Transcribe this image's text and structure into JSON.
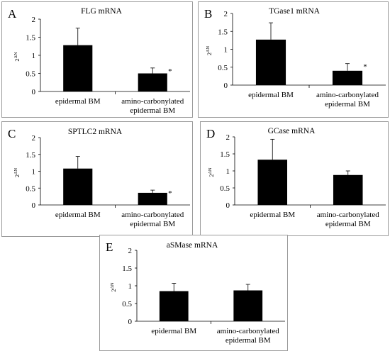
{
  "chart_data": [
    {
      "type": "bar",
      "panel_letter": "A",
      "title": "FLG  mRNA",
      "ylabel": "2ΔN",
      "categories": [
        "epidermal BM",
        "amino-carbonylated\nepidermal BM"
      ],
      "values": [
        1.28,
        0.5
      ],
      "error_upper": [
        0.47,
        0.15
      ],
      "significance": [
        "",
        "*"
      ],
      "ylim": [
        0,
        2
      ],
      "yticks": [
        "0",
        "0.5",
        "1",
        "1.5",
        "2"
      ],
      "bar_color": "#000000"
    },
    {
      "type": "bar",
      "panel_letter": "B",
      "title": "TGase1  mRNA",
      "ylabel": "2ΔN",
      "categories": [
        "epidermal BM",
        "amino-carbonylated\nepidermal BM"
      ],
      "values": [
        1.27,
        0.4
      ],
      "error_upper": [
        0.47,
        0.2
      ],
      "significance": [
        "",
        "*"
      ],
      "ylim": [
        0,
        2
      ],
      "yticks": [
        "0",
        "0.5",
        "1",
        "1.5",
        "2"
      ],
      "bar_color": "#000000"
    },
    {
      "type": "bar",
      "panel_letter": "C",
      "title": "SPTLC2  mRNA",
      "ylabel": "2ΔN",
      "categories": [
        "epidermal BM",
        "amino-carbonylated\nepidermal BM"
      ],
      "values": [
        1.08,
        0.36
      ],
      "error_upper": [
        0.36,
        0.08
      ],
      "significance": [
        "",
        "*"
      ],
      "ylim": [
        0,
        2
      ],
      "yticks": [
        "0",
        "0.5",
        "1",
        "1.5",
        "2"
      ],
      "bar_color": "#000000"
    },
    {
      "type": "bar",
      "panel_letter": "D",
      "title": "GCase  mRNA",
      "ylabel": "2ΔN",
      "categories": [
        "epidermal BM",
        "amino-carbonylated\nepidermal BM"
      ],
      "values": [
        1.33,
        0.88
      ],
      "error_upper": [
        0.6,
        0.12
      ],
      "significance": [
        "",
        ""
      ],
      "ylim": [
        0,
        2
      ],
      "yticks": [
        "0",
        "0.5",
        "1",
        "1.5",
        "2"
      ],
      "bar_color": "#000000"
    },
    {
      "type": "bar",
      "panel_letter": "E",
      "title": "aSMase mRNA",
      "ylabel": "2ΔN",
      "categories": [
        "epidermal BM",
        "amino-carbonylated\nepidermal BM"
      ],
      "values": [
        0.85,
        0.87
      ],
      "error_upper": [
        0.22,
        0.17
      ],
      "significance": [
        "",
        ""
      ],
      "ylim": [
        0,
        2
      ],
      "yticks": [
        "0",
        "0.5",
        "1",
        "1.5",
        "2"
      ],
      "bar_color": "#000000"
    }
  ]
}
